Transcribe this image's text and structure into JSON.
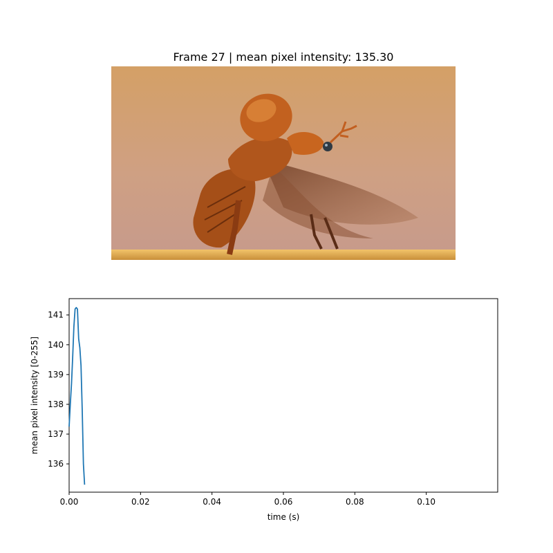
{
  "figure": {
    "image_title": "Frame 27 | mean pixel intensity: 135.30",
    "photo_subject": "beetle-taking-off"
  },
  "chart_data": {
    "type": "line",
    "xlabel": "time (s)",
    "ylabel": "mean pixel intensity [0-255]",
    "xlim": [
      0,
      0.12
    ],
    "ylim": [
      135.05,
      141.55
    ],
    "xticks": [
      0.0,
      0.02,
      0.04,
      0.06,
      0.08,
      0.1
    ],
    "xtick_labels": [
      "0.00",
      "0.02",
      "0.04",
      "0.06",
      "0.08",
      "0.10"
    ],
    "yticks": [
      136,
      137,
      138,
      139,
      140,
      141
    ],
    "ytick_labels": [
      "136",
      "137",
      "138",
      "139",
      "140",
      "141"
    ],
    "grid": false,
    "series": [
      {
        "color": "#1f77b4",
        "x": [
          0.0,
          0.00033,
          0.00067,
          0.001,
          0.00133,
          0.00167,
          0.002,
          0.00233,
          0.00267,
          0.003,
          0.00333,
          0.00367,
          0.004,
          0.00433
        ],
        "y": [
          137.25,
          138.0,
          138.7,
          139.6,
          140.6,
          141.2,
          141.25,
          141.2,
          140.2,
          139.9,
          139.3,
          137.8,
          136.0,
          135.3
        ]
      }
    ]
  }
}
